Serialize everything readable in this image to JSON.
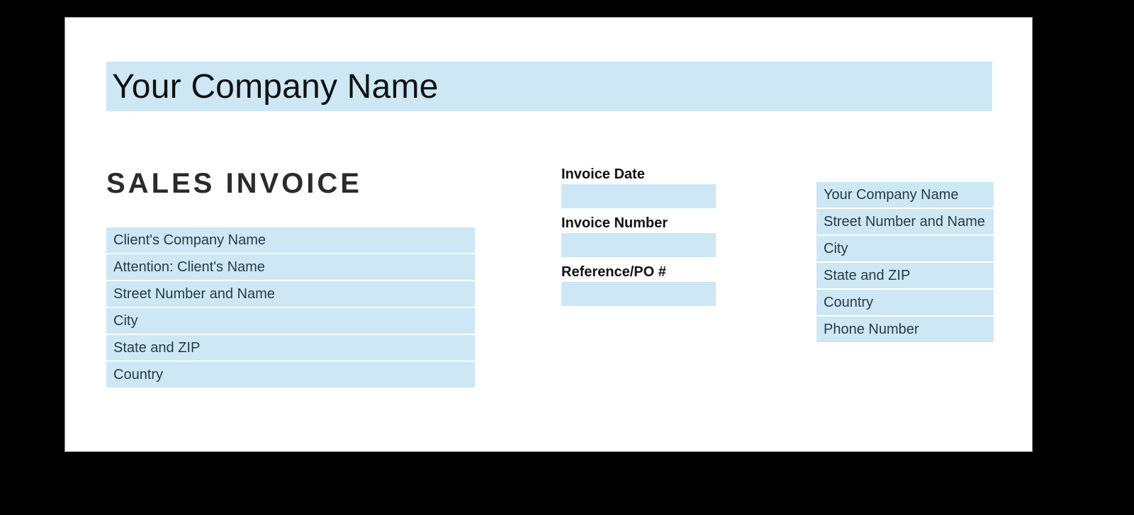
{
  "colors": {
    "page_bg": "#000000",
    "paper_bg": "#ffffff",
    "field_bg": "#cde7f4",
    "text_dark": "#1f2328",
    "label_dark": "#111111"
  },
  "header": {
    "company_name": "Your Company Name"
  },
  "title": "SALES INVOICE",
  "client": {
    "fields": [
      "Client's Company Name",
      "Attention: Client's Name",
      "Street Number and Name",
      "City",
      "State and ZIP",
      "Country"
    ]
  },
  "meta": {
    "date_label": "Invoice Date",
    "date_value": "",
    "number_label": "Invoice Number",
    "number_value": "",
    "po_label": "Reference/PO #",
    "po_value": ""
  },
  "company_address": {
    "fields": [
      "Your Company Name",
      "Street Number and Name",
      "City",
      "State and ZIP",
      "Country",
      "Phone Number"
    ]
  }
}
